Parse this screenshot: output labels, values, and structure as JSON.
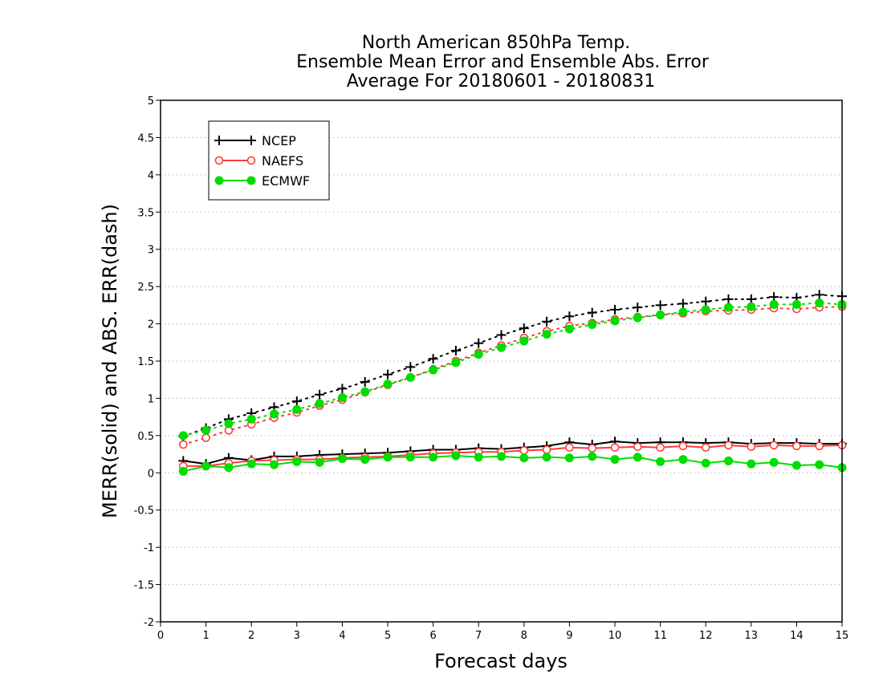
{
  "chart_data": {
    "type": "line",
    "title_lines": [
      "North American 850hPa Temp.",
      "Ensemble Mean Error and Ensemble Abs. Error",
      "Average For 20180601 - 20180831"
    ],
    "xlabel": "Forecast days",
    "ylabel": "MERR(solid) and ABS. ERR(dash)",
    "xlim": [
      0,
      15
    ],
    "ylim": [
      -2,
      5
    ],
    "x_ticks": [
      "0",
      "1",
      "2",
      "3",
      "4",
      "5",
      "6",
      "7",
      "8",
      "9",
      "10",
      "11",
      "12",
      "13",
      "14",
      "15"
    ],
    "y_ticks": [
      "-2",
      "-1.5",
      "-1",
      "-0.5",
      "0",
      "0.5",
      "1",
      "1.5",
      "2",
      "2.5",
      "3",
      "3.5",
      "4",
      "4.5",
      "5"
    ],
    "grid": "horizontal dotted",
    "legend_position": "top-left",
    "x": [
      0.5,
      1,
      1.5,
      2,
      2.5,
      3,
      3.5,
      4,
      4.5,
      5,
      5.5,
      6,
      6.5,
      7,
      7.5,
      8,
      8.5,
      9,
      9.5,
      10,
      10.5,
      11,
      11.5,
      12,
      12.5,
      13,
      13.5,
      14,
      14.5,
      15
    ],
    "series": [
      {
        "name": "NCEP",
        "color": "#000000",
        "marker": "plus",
        "merr": [
          0.16,
          0.12,
          0.2,
          0.17,
          0.22,
          0.22,
          0.24,
          0.25,
          0.26,
          0.27,
          0.29,
          0.31,
          0.31,
          0.33,
          0.32,
          0.34,
          0.36,
          0.41,
          0.38,
          0.42,
          0.4,
          0.41,
          0.41,
          0.4,
          0.41,
          0.39,
          0.4,
          0.4,
          0.39,
          0.39
        ],
        "abs_err": [
          0.49,
          0.6,
          0.72,
          0.8,
          0.88,
          0.96,
          1.05,
          1.13,
          1.22,
          1.32,
          1.42,
          1.53,
          1.64,
          1.74,
          1.85,
          1.94,
          2.03,
          2.1,
          2.15,
          2.19,
          2.22,
          2.25,
          2.27,
          2.3,
          2.33,
          2.33,
          2.36,
          2.35,
          2.39,
          2.37
        ]
      },
      {
        "name": "NAEFS",
        "color": "#ff3a3a",
        "marker": "open-circle",
        "merr": [
          0.09,
          0.09,
          0.13,
          0.16,
          0.17,
          0.18,
          0.18,
          0.2,
          0.21,
          0.22,
          0.24,
          0.26,
          0.27,
          0.28,
          0.28,
          0.3,
          0.31,
          0.34,
          0.33,
          0.34,
          0.35,
          0.34,
          0.36,
          0.34,
          0.37,
          0.35,
          0.37,
          0.36,
          0.36,
          0.37
        ],
        "abs_err": [
          0.38,
          0.47,
          0.57,
          0.65,
          0.74,
          0.81,
          0.9,
          0.98,
          1.08,
          1.18,
          1.28,
          1.39,
          1.5,
          1.61,
          1.71,
          1.81,
          1.9,
          1.97,
          2.01,
          2.06,
          2.09,
          2.12,
          2.14,
          2.17,
          2.18,
          2.19,
          2.21,
          2.2,
          2.22,
          2.23
        ]
      },
      {
        "name": "ECMWF",
        "color": "#00dd00",
        "marker": "filled-circle",
        "merr": [
          0.02,
          0.09,
          0.07,
          0.12,
          0.11,
          0.15,
          0.14,
          0.19,
          0.18,
          0.21,
          0.21,
          0.21,
          0.23,
          0.21,
          0.22,
          0.2,
          0.21,
          0.2,
          0.22,
          0.18,
          0.21,
          0.15,
          0.18,
          0.13,
          0.16,
          0.12,
          0.14,
          0.1,
          0.11,
          0.07
        ],
        "abs_err": [
          0.5,
          0.57,
          0.66,
          0.72,
          0.79,
          0.85,
          0.93,
          1.01,
          1.09,
          1.19,
          1.28,
          1.38,
          1.48,
          1.59,
          1.68,
          1.77,
          1.86,
          1.93,
          1.99,
          2.04,
          2.08,
          2.12,
          2.16,
          2.19,
          2.22,
          2.23,
          2.26,
          2.26,
          2.28,
          2.26
        ]
      }
    ]
  }
}
